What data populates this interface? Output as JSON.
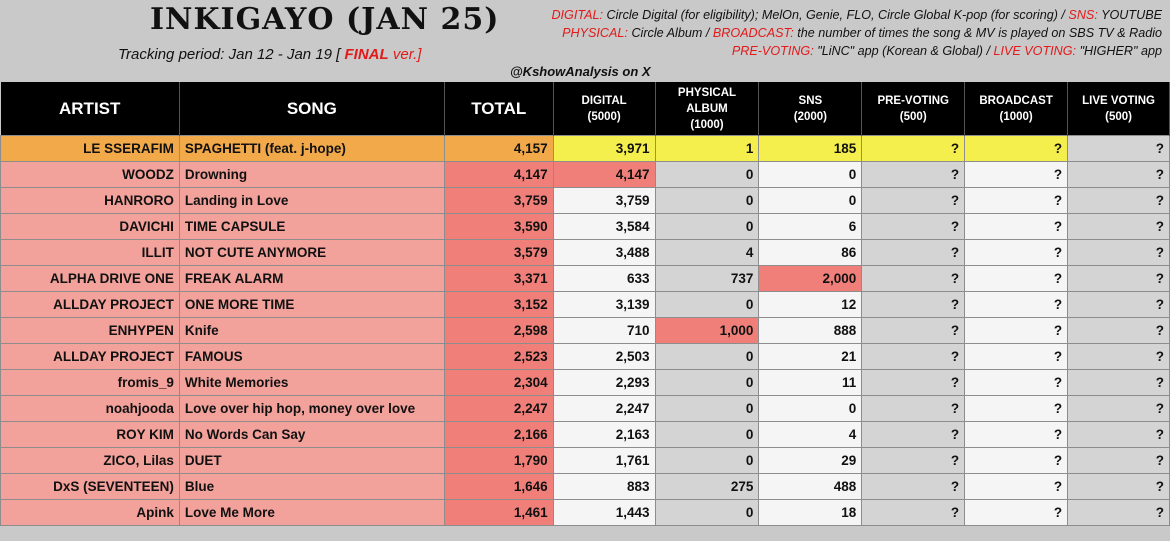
{
  "header": {
    "title": "INKIGAYO (JAN 25)",
    "tracking_label": "Tracking period: Jan 12 - Jan 19 [",
    "tracking_final": "FINAL",
    "tracking_suffix": "ver.]",
    "credit": "@KshowAnalysis on X"
  },
  "legend": {
    "line1_k1": "DIGITAL:",
    "line1_v1": "Circle Digital (for eligibility); MelOn, Genie, FLO, Circle Global K-pop (for scoring) /",
    "line1_k2": "SNS:",
    "line1_v2": "YOUTUBE",
    "line2_k1": "PHYSICAL:",
    "line2_v1": "Circle Album /",
    "line2_k2": "BROADCAST:",
    "line2_v2": "the number of times the song & MV is played on SBS TV & Radio",
    "line3_k1": "PRE-VOTING:",
    "line3_v1": "\"LiNC\" app (Korean & Global) /",
    "line3_k2": "LIVE VOTING:",
    "line3_v2": "\"HIGHER\" app"
  },
  "columns": {
    "artist": "ARTIST",
    "song": "SONG",
    "total": "TOTAL",
    "digital": "DIGITAL",
    "digital_max": "(5000)",
    "physical": "PHYSICAL",
    "physical2": "ALBUM",
    "physical_max": "(1000)",
    "sns": "SNS",
    "sns_max": "(2000)",
    "prevote": "PRE-VOTING",
    "prevote_max": "(500)",
    "broadcast": "BROADCAST",
    "broadcast_max": "(1000)",
    "live": "LIVE VOTING",
    "live_max": "(500)"
  },
  "rows": [
    {
      "artist": "LE SSERAFIM",
      "song": "SPAGHETTI (feat. j-hope)",
      "total": "4,157",
      "digital": "3,971",
      "physical": "1",
      "sns": "185",
      "pre": "?",
      "broadcast": "?",
      "live": "?"
    },
    {
      "artist": "WOODZ",
      "song": "Drowning",
      "total": "4,147",
      "digital": "4,147",
      "physical": "0",
      "sns": "0",
      "pre": "?",
      "broadcast": "?",
      "live": "?"
    },
    {
      "artist": "HANRORO",
      "song": "Landing in Love",
      "total": "3,759",
      "digital": "3,759",
      "physical": "0",
      "sns": "0",
      "pre": "?",
      "broadcast": "?",
      "live": "?"
    },
    {
      "artist": "DAVICHI",
      "song": "TIME CAPSULE",
      "total": "3,590",
      "digital": "3,584",
      "physical": "0",
      "sns": "6",
      "pre": "?",
      "broadcast": "?",
      "live": "?"
    },
    {
      "artist": "ILLIT",
      "song": "NOT CUTE ANYMORE",
      "total": "3,579",
      "digital": "3,488",
      "physical": "4",
      "sns": "86",
      "pre": "?",
      "broadcast": "?",
      "live": "?"
    },
    {
      "artist": "ALPHA DRIVE ONE",
      "song": "FREAK ALARM",
      "total": "3,371",
      "digital": "633",
      "physical": "737",
      "sns": "2,000",
      "pre": "?",
      "broadcast": "?",
      "live": "?"
    },
    {
      "artist": "ALLDAY PROJECT",
      "song": "ONE MORE TIME",
      "total": "3,152",
      "digital": "3,139",
      "physical": "0",
      "sns": "12",
      "pre": "?",
      "broadcast": "?",
      "live": "?"
    },
    {
      "artist": "ENHYPEN",
      "song": "Knife",
      "total": "2,598",
      "digital": "710",
      "physical": "1,000",
      "sns": "888",
      "pre": "?",
      "broadcast": "?",
      "live": "?"
    },
    {
      "artist": "ALLDAY PROJECT",
      "song": "FAMOUS",
      "total": "2,523",
      "digital": "2,503",
      "physical": "0",
      "sns": "21",
      "pre": "?",
      "broadcast": "?",
      "live": "?"
    },
    {
      "artist": "fromis_9",
      "song": "White Memories",
      "total": "2,304",
      "digital": "2,293",
      "physical": "0",
      "sns": "11",
      "pre": "?",
      "broadcast": "?",
      "live": "?"
    },
    {
      "artist": "noahjooda",
      "song": "Love over hip hop, money over love",
      "total": "2,247",
      "digital": "2,247",
      "physical": "0",
      "sns": "0",
      "pre": "?",
      "broadcast": "?",
      "live": "?"
    },
    {
      "artist": "ROY KIM",
      "song": "No Words Can Say",
      "total": "2,166",
      "digital": "2,163",
      "physical": "0",
      "sns": "4",
      "pre": "?",
      "broadcast": "?",
      "live": "?"
    },
    {
      "artist": "ZICO, Lilas",
      "song": "DUET",
      "total": "1,790",
      "digital": "1,761",
      "physical": "0",
      "sns": "29",
      "pre": "?",
      "broadcast": "?",
      "live": "?"
    },
    {
      "artist": "DxS (SEVENTEEN)",
      "song": "Blue",
      "total": "1,646",
      "digital": "883",
      "physical": "275",
      "sns": "488",
      "pre": "?",
      "broadcast": "?",
      "live": "?"
    },
    {
      "artist": "Apink",
      "song": "Love Me More",
      "total": "1,461",
      "digital": "1,443",
      "physical": "0",
      "sns": "18",
      "pre": "?",
      "broadcast": "?",
      "live": "?"
    }
  ],
  "colors": {
    "header_bg": "#000000",
    "artist_bg": "#f2a19b",
    "total_bg": "#f07f79",
    "highlight_bg": "#f07f79",
    "first_row_orange": "#f2a94a",
    "first_row_yellow": "#f4ef4c",
    "label_red": "#e21a1a"
  }
}
